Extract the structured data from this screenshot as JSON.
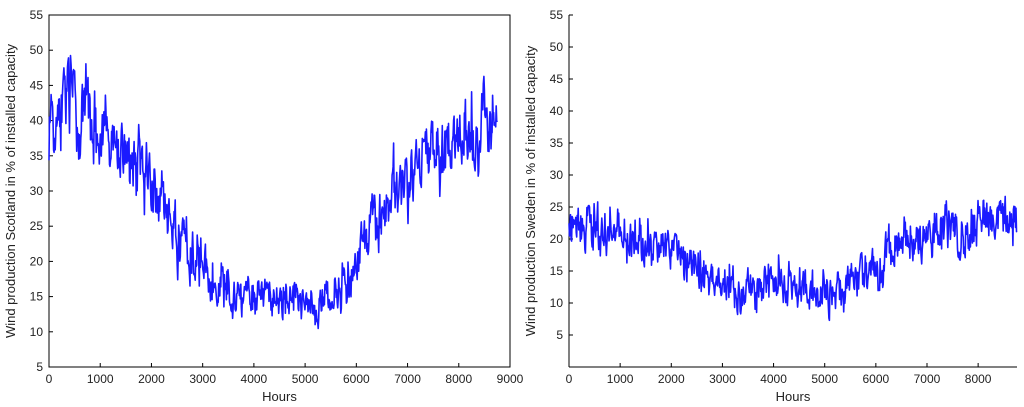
{
  "chart_data": [
    {
      "type": "line",
      "title": "",
      "xlabel": "Hours",
      "ylabel": "Wind production Scotland in % of installed capacity",
      "xlim": [
        0,
        9000
      ],
      "ylim": [
        5,
        55
      ],
      "xticks": [
        0,
        1000,
        2000,
        3000,
        4000,
        5000,
        6000,
        7000,
        8000,
        9000
      ],
      "yticks": [
        5,
        10,
        15,
        20,
        25,
        30,
        35,
        40,
        45,
        50,
        55
      ],
      "grid": false,
      "series": [
        {
          "color": "#1a1aff",
          "x": [
            0,
            250,
            500,
            750,
            1000,
            1250,
            1500,
            1750,
            2000,
            2250,
            2500,
            2750,
            3000,
            3250,
            3500,
            3750,
            4000,
            4250,
            4500,
            4750,
            5000,
            5250,
            5500,
            5750,
            6000,
            6250,
            6500,
            6750,
            7000,
            7250,
            7500,
            7750,
            8000,
            8250,
            8500,
            8750
          ],
          "values": [
            40,
            42,
            43,
            41,
            38,
            36,
            34,
            33,
            31,
            28,
            24,
            21,
            20,
            18,
            16,
            15,
            15.5,
            16,
            15,
            14.5,
            14,
            13,
            15,
            18,
            21,
            24,
            27,
            30,
            31,
            33,
            35,
            36,
            37,
            38,
            40,
            41
          ],
          "spread": [
            4.5,
            5,
            5,
            4.5,
            4.5,
            4,
            4,
            4,
            4,
            3.5,
            3.5,
            3,
            3,
            3,
            3,
            2.5,
            2.5,
            2.5,
            2.5,
            2.5,
            2.5,
            2.5,
            2.5,
            3,
            3,
            3.5,
            3.5,
            4,
            4,
            4,
            4,
            4,
            4,
            4,
            4,
            4
          ],
          "count": 875
        }
      ]
    },
    {
      "type": "line",
      "title": "",
      "xlabel": "Hours",
      "ylabel": "Wind production Sweden in % of installed capacity",
      "xlim": [
        0,
        8760
      ],
      "ylim": [
        0,
        55
      ],
      "xticks": [
        0,
        1000,
        2000,
        3000,
        4000,
        5000,
        6000,
        7000,
        8000
      ],
      "yticks": [
        5,
        10,
        15,
        20,
        25,
        30,
        35,
        40,
        45,
        50,
        55
      ],
      "grid": false,
      "series": [
        {
          "color": "#1a1aff",
          "x": [
            0,
            250,
            500,
            750,
            1000,
            1250,
            1500,
            1750,
            2000,
            2250,
            2500,
            2750,
            3000,
            3250,
            3500,
            3750,
            4000,
            4250,
            4500,
            4750,
            5000,
            5250,
            5500,
            5750,
            6000,
            6250,
            6500,
            6750,
            7000,
            7250,
            7500,
            7750,
            8000,
            8250,
            8500,
            8760
          ],
          "values": [
            22,
            23,
            22,
            21,
            20.5,
            20,
            20,
            19.5,
            18.5,
            17,
            16,
            14,
            13,
            12.5,
            12,
            12,
            12.5,
            13,
            12.5,
            12,
            12,
            12,
            13,
            14.5,
            16,
            17.5,
            19,
            20,
            20.5,
            21,
            21,
            21.5,
            22,
            22.5,
            23,
            23
          ],
          "spread": [
            3,
            3,
            3,
            3,
            3,
            3,
            3,
            2.5,
            2.5,
            2.5,
            2.5,
            2.5,
            2.5,
            2.5,
            2.5,
            2.5,
            2.5,
            2.5,
            2.5,
            2.5,
            2.5,
            2.5,
            2.5,
            2.5,
            3,
            3,
            3,
            3,
            3,
            3,
            3,
            3,
            3,
            3,
            3,
            3
          ],
          "count": 875
        }
      ]
    }
  ]
}
